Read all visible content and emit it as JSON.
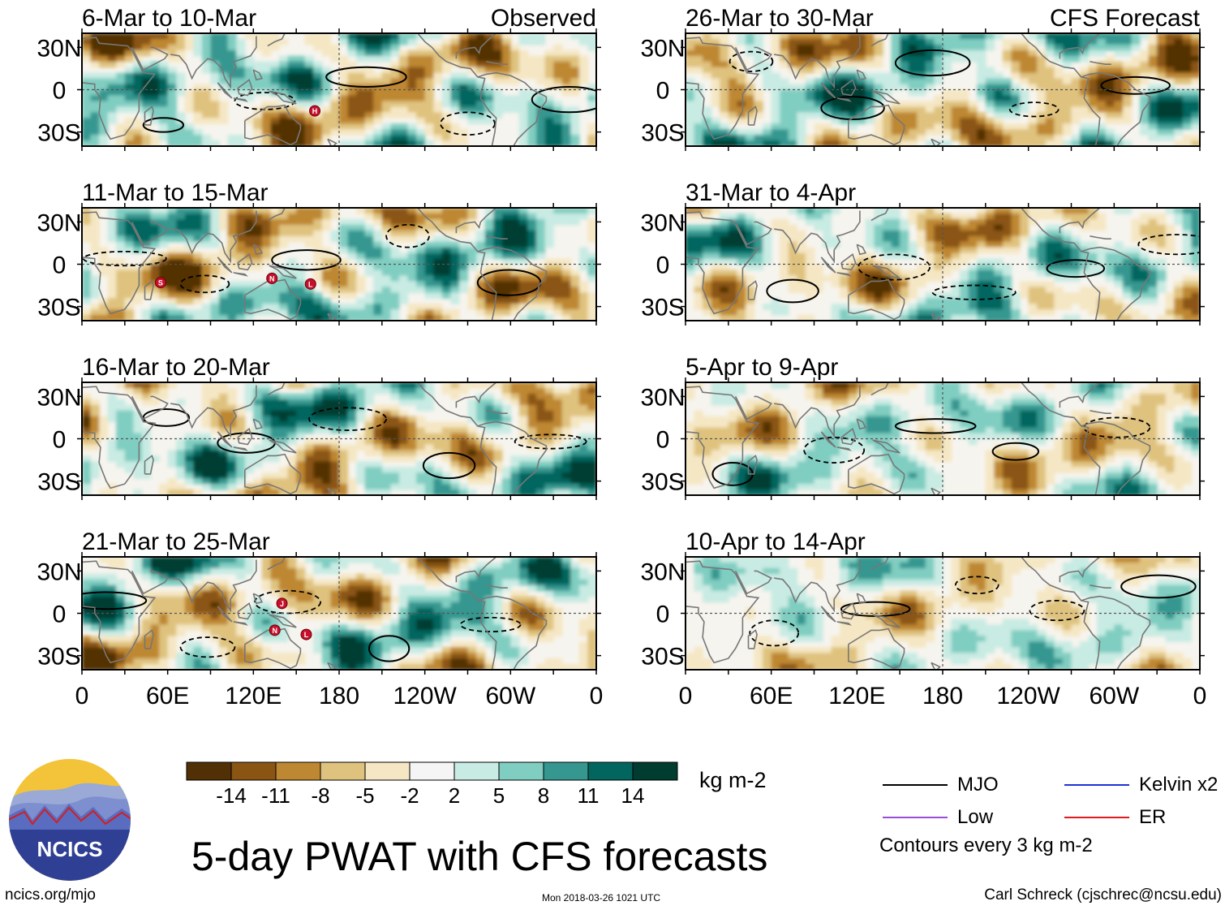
{
  "figure": {
    "title": "5-day PWAT with CFS forecasts",
    "footer_left": "ncics.org/mjo",
    "footer_center": "Mon 2018-03-26 1021 UTC",
    "footer_right": "Carl Schreck (cjschrec@ncsu.edu)",
    "logo_text": "NCICS",
    "units": "kg m-2",
    "contour_note": "Contours every 3 kg m-2",
    "left_column_label": "Observed",
    "right_column_label": "CFS Forecast"
  },
  "legend": [
    {
      "label": "MJO",
      "color": "#000000"
    },
    {
      "label": "Kelvin x2",
      "color": "#1f33d6"
    },
    {
      "label": "Low",
      "color": "#9b4fd9"
    },
    {
      "label": "ER",
      "color": "#e01b1b"
    }
  ],
  "chart_data": {
    "type": "heatmap",
    "variable": "5-day precipitable water (PWAT) anomaly",
    "x_tick_labels": [
      "0",
      "60E",
      "120E",
      "180",
      "120W",
      "60W",
      "0"
    ],
    "y_tick_labels": [
      "30N",
      "0",
      "30S"
    ],
    "lon_range": [
      0,
      360
    ],
    "lat_range": [
      -40,
      40
    ],
    "colorbar": {
      "levels": [
        -14,
        -11,
        -8,
        -5,
        -2,
        2,
        5,
        8,
        11,
        14
      ],
      "tick_labels": [
        "-14",
        "-11",
        "-8",
        "-5",
        "-2",
        "2",
        "5",
        "8",
        "11",
        "14"
      ],
      "colors": [
        "#523006",
        "#8a5512",
        "#be8731",
        "#dfc27e",
        "#f5e7c4",
        "#f5f5f5",
        "#c8ebe3",
        "#80cdc1",
        "#359790",
        "#02665e",
        "#013c30"
      ]
    },
    "panels": [
      {
        "period": "6-Mar to 10-Mar",
        "source": "Observed",
        "storms": [
          {
            "symbol": "H",
            "lon": 163,
            "lat": -15
          }
        ]
      },
      {
        "period": "11-Mar to 15-Mar",
        "source": "Observed",
        "storms": [
          {
            "symbol": "S",
            "lon": 55,
            "lat": -13
          },
          {
            "symbol": "N",
            "lon": 133,
            "lat": -10
          },
          {
            "symbol": "L",
            "lon": 160,
            "lat": -14
          }
        ]
      },
      {
        "period": "16-Mar to 20-Mar",
        "source": "Observed",
        "storms": []
      },
      {
        "period": "21-Mar to 25-Mar",
        "source": "Observed",
        "storms": [
          {
            "symbol": "J",
            "lon": 140,
            "lat": 7
          },
          {
            "symbol": "N",
            "lon": 135,
            "lat": -12
          },
          {
            "symbol": "L",
            "lon": 157,
            "lat": -15
          }
        ]
      },
      {
        "period": "26-Mar to 30-Mar",
        "source": "CFS Forecast",
        "storms": []
      },
      {
        "period": "31-Mar to 4-Apr",
        "source": "CFS Forecast",
        "storms": []
      },
      {
        "period": "5-Apr to 9-Apr",
        "source": "CFS Forecast",
        "storms": []
      },
      {
        "period": "10-Apr to 14-Apr",
        "source": "CFS Forecast",
        "storms": []
      }
    ]
  }
}
